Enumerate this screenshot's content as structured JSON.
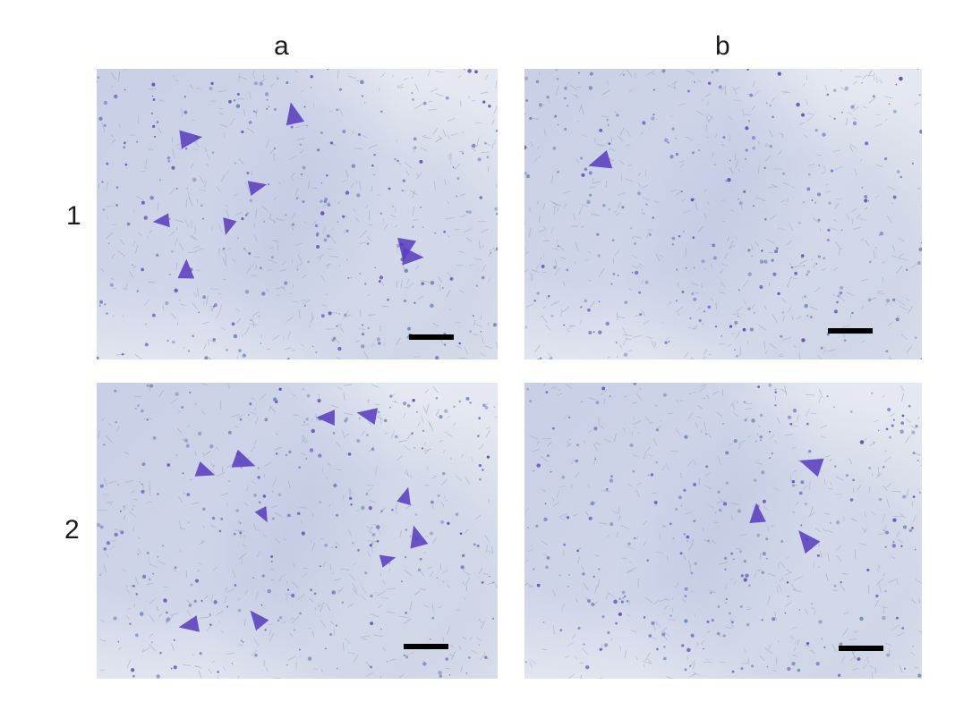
{
  "figure": {
    "column_labels": [
      "a",
      "b"
    ],
    "row_labels": [
      "1",
      "2"
    ],
    "colors": {
      "background": "#ffffff",
      "tissue": "#dde1eb",
      "stain": "#5a3fbf",
      "speckle": "#6b7fb0",
      "scale_bar": "#000000"
    }
  },
  "panels": {
    "p1a": {
      "row": "1",
      "column": "a",
      "stained_cells": 8
    },
    "p1b": {
      "row": "1",
      "column": "b",
      "stained_cells": 1
    },
    "p2a": {
      "row": "2",
      "column": "a",
      "stained_cells": 10
    },
    "p2b": {
      "row": "2",
      "column": "b",
      "stained_cells": 3
    }
  }
}
